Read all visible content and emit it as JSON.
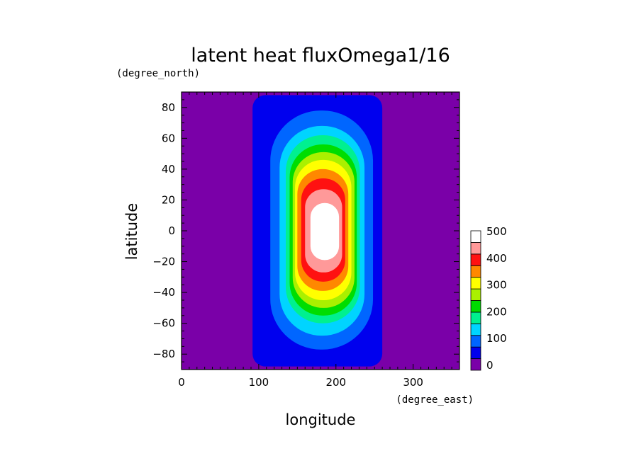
{
  "chart_data": {
    "type": "heatmap",
    "title": "latent heat fluxOmega1/16",
    "xlabel": "longitude",
    "ylabel": "latitude",
    "x_units": "(degree_east)",
    "y_units": "(degree_north)",
    "xlim": [
      0,
      360
    ],
    "ylim": [
      -90,
      90
    ],
    "x_ticks": [
      0,
      100,
      200,
      300
    ],
    "y_ticks": [
      -80,
      -60,
      -40,
      -20,
      0,
      20,
      40,
      60,
      80
    ],
    "x_tick_labels": [
      "0",
      "100",
      "200",
      "300"
    ],
    "y_tick_labels": [
      "−80",
      "−60",
      "−40",
      "−20",
      "0",
      "20",
      "40",
      "60",
      "80"
    ],
    "levels": [
      0,
      50,
      100,
      150,
      200,
      250,
      300,
      350,
      400,
      450,
      500
    ],
    "colorbar_labels": [
      "0",
      "100",
      "200",
      "300",
      "400",
      "500"
    ],
    "colors": [
      "#7a00a8",
      "#0000ee",
      "#0066ff",
      "#00d4ff",
      "#00f090",
      "#00dd00",
      "#aaf000",
      "#ffff00",
      "#ff8800",
      "#ff1111",
      "#ff9999",
      "#ffffff"
    ],
    "contours": [
      {
        "level": 0,
        "lon_min": 92,
        "lon_max": 260,
        "lat_min": -88,
        "lat_max": 88
      },
      {
        "level": 50,
        "lon_min": 115,
        "lon_max": 248,
        "lat_min": -77,
        "lat_max": 78
      },
      {
        "level": 100,
        "lon_min": 127,
        "lon_max": 237,
        "lat_min": -68,
        "lat_max": 68
      },
      {
        "level": 150,
        "lon_min": 135,
        "lon_max": 231,
        "lat_min": -60,
        "lat_max": 62
      },
      {
        "level": 200,
        "lon_min": 140,
        "lon_max": 227,
        "lat_min": -55,
        "lat_max": 56
      },
      {
        "level": 250,
        "lon_min": 144,
        "lon_max": 224,
        "lat_min": -50,
        "lat_max": 51
      },
      {
        "level": 300,
        "lon_min": 147,
        "lon_max": 220,
        "lat_min": -45,
        "lat_max": 46
      },
      {
        "level": 350,
        "lon_min": 150,
        "lon_max": 216,
        "lat_min": -39,
        "lat_max": 40
      },
      {
        "level": 400,
        "lon_min": 155,
        "lon_max": 212,
        "lat_min": -33,
        "lat_max": 34
      },
      {
        "level": 450,
        "lon_min": 160,
        "lon_max": 208,
        "lat_min": -27,
        "lat_max": 27
      },
      {
        "level": 500,
        "lon_min": 167,
        "lon_max": 204,
        "lat_min": -19,
        "lat_max": 18
      }
    ]
  }
}
